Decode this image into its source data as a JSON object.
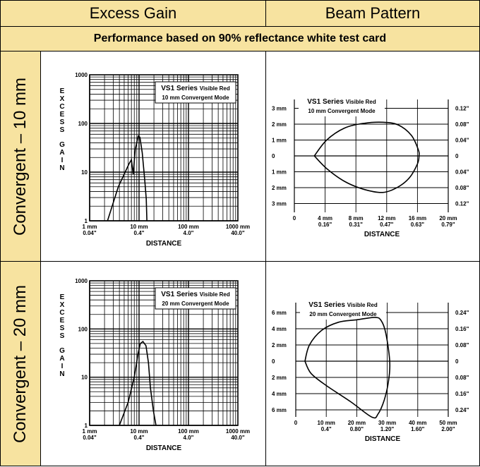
{
  "headers": {
    "excess_gain": "Excess Gain",
    "beam_pattern": "Beam Pattern",
    "performance_note": "Performance based on 90% reflectance white test card"
  },
  "rows": [
    {
      "label": "Convergent – 10 mm"
    },
    {
      "label": "Convergent – 20 mm"
    }
  ],
  "colors": {
    "header_bg": "#f7e3a0",
    "line": "#000000",
    "background": "#ffffff"
  },
  "chart_data": [
    {
      "type": "line",
      "chart": "excess_gain",
      "title": "VS1 Series",
      "title_suffix": "Visible Red",
      "subtitle": "10 mm Convergent Mode",
      "ylabel": "EXCESS GAIN",
      "xlabel": "DISTANCE",
      "y_scale": "log",
      "x_scale": "log",
      "ylim": [
        1,
        1000
      ],
      "xlim": [
        1,
        1000
      ],
      "y_ticks": [
        "1",
        "10",
        "100",
        "1000"
      ],
      "x_ticks": [
        [
          "1 mm",
          "0.04\""
        ],
        [
          "10 mm",
          "0.4\""
        ],
        [
          "100 mm",
          "4.0\""
        ],
        [
          "1000 mm",
          "40.0\""
        ]
      ],
      "series": [
        {
          "points": [
            [
              2.3,
              1
            ],
            [
              3.8,
              5
            ],
            [
              6.3,
              15
            ],
            [
              7.0,
              18
            ],
            [
              7.6,
              9
            ],
            [
              8.4,
              30
            ],
            [
              9.6,
              55
            ],
            [
              10.4,
              52
            ],
            [
              11.6,
              25
            ],
            [
              13.0,
              7
            ],
            [
              14.0,
              2.8
            ],
            [
              14.4,
              1
            ]
          ]
        }
      ]
    },
    {
      "type": "line",
      "chart": "beam_pattern",
      "title": "VS1 Series",
      "title_suffix": "Visible Red",
      "subtitle": "10 mm Convergent Mode",
      "xlabel": "DISTANCE",
      "xlim": [
        0,
        20
      ],
      "ylim": [
        -3.5,
        3.5
      ],
      "x_ticks": [
        [
          "0",
          ""
        ],
        [
          "4 mm",
          "0.16\""
        ],
        [
          "8 mm",
          "0.31\""
        ],
        [
          "12 mm",
          "0.47\""
        ],
        [
          "16 mm",
          "0.63\""
        ],
        [
          "20 mm",
          "0.79\""
        ]
      ],
      "y_ticks_left": [
        [
          "3 mm",
          3
        ],
        [
          "2 mm",
          2
        ],
        [
          "1 mm",
          1
        ],
        [
          "0",
          0
        ],
        [
          "1 mm",
          -1
        ],
        [
          "2 mm",
          -2
        ],
        [
          "3 mm",
          -3
        ]
      ],
      "y_ticks_right": [
        [
          "0.12\"",
          3
        ],
        [
          "0.08\"",
          2
        ],
        [
          "0.04\"",
          1
        ],
        [
          "0",
          0
        ],
        [
          "0.04\"",
          -1
        ],
        [
          "0.08\"",
          -2
        ],
        [
          "0.12\"",
          -3
        ]
      ],
      "series": [
        {
          "points": [
            [
              2.6,
              0
            ],
            [
              4.2,
              1.0
            ],
            [
              6.5,
              1.75
            ],
            [
              9.0,
              2.05
            ],
            [
              11.5,
              2.12
            ],
            [
              13.5,
              1.95
            ],
            [
              15.2,
              1.3
            ],
            [
              16.1,
              0.4
            ],
            [
              16.2,
              0
            ],
            [
              16.0,
              -0.5
            ],
            [
              15.0,
              -1.35
            ],
            [
              13.5,
              -1.95
            ],
            [
              11.5,
              -2.3
            ],
            [
              9.0,
              -2.1
            ],
            [
              6.5,
              -1.6
            ],
            [
              4.2,
              -0.8
            ],
            [
              2.6,
              0
            ]
          ]
        }
      ]
    },
    {
      "type": "line",
      "chart": "excess_gain",
      "title": "VS1 Series",
      "title_suffix": "Visible Red",
      "subtitle": "20 mm Convergent Mode",
      "ylabel": "EXCESS GAIN",
      "xlabel": "DISTANCE",
      "y_scale": "log",
      "x_scale": "log",
      "ylim": [
        1,
        1000
      ],
      "xlim": [
        1,
        1000
      ],
      "y_ticks": [
        "1",
        "10",
        "100",
        "1000"
      ],
      "x_ticks": [
        [
          "1 mm",
          "0.04\""
        ],
        [
          "10 mm",
          "0.4\""
        ],
        [
          "100 mm",
          "4.0\""
        ],
        [
          "1000 mm",
          "40.0\""
        ]
      ],
      "series": [
        {
          "points": [
            [
              4.0,
              1
            ],
            [
              6.0,
              3
            ],
            [
              8.0,
              10
            ],
            [
              9.5,
              30
            ],
            [
              10.6,
              50
            ],
            [
              12.0,
              55
            ],
            [
              13.8,
              45
            ],
            [
              15.5,
              20
            ],
            [
              17.0,
              6
            ],
            [
              19.5,
              2
            ],
            [
              22.0,
              1
            ]
          ]
        }
      ]
    },
    {
      "type": "line",
      "chart": "beam_pattern",
      "title": "VS1 Series",
      "title_suffix": "Visible Red",
      "subtitle": "20 mm Convergent Mode",
      "xlabel": "DISTANCE",
      "xlim": [
        0,
        50
      ],
      "ylim": [
        -7,
        7
      ],
      "x_ticks": [
        [
          "0",
          ""
        ],
        [
          "10 mm",
          "0.4\""
        ],
        [
          "20 mm",
          "0.80\""
        ],
        [
          "30 mm",
          "1.20\""
        ],
        [
          "40 mm",
          "1.60\""
        ],
        [
          "50 mm",
          "2.00\""
        ]
      ],
      "y_ticks_left": [
        [
          "6 mm",
          6
        ],
        [
          "4 mm",
          4
        ],
        [
          "2 mm",
          2
        ],
        [
          "0",
          0
        ],
        [
          "2 mm",
          -2
        ],
        [
          "4 mm",
          -4
        ],
        [
          "6 mm",
          -6
        ]
      ],
      "y_ticks_right": [
        [
          "0.24\"",
          6
        ],
        [
          "0.16\"",
          4
        ],
        [
          "0.08\"",
          2
        ],
        [
          "0",
          0
        ],
        [
          "0.08\"",
          -2
        ],
        [
          "0.16\"",
          -4
        ],
        [
          "0.24\"",
          -6
        ]
      ],
      "series": [
        {
          "points": [
            [
              3.0,
              0
            ],
            [
              4.5,
              2.0
            ],
            [
              8.5,
              3.8
            ],
            [
              14.0,
              4.8
            ],
            [
              20.0,
              5.1
            ],
            [
              26.0,
              5.4
            ],
            [
              28.0,
              5.0
            ],
            [
              29.5,
              3.5
            ],
            [
              30.8,
              0
            ],
            [
              30.4,
              -2.5
            ],
            [
              29.0,
              -4.8
            ],
            [
              27.0,
              -6.5
            ],
            [
              25.0,
              -6.9
            ],
            [
              18.0,
              -5.0
            ],
            [
              10.0,
              -3.0
            ],
            [
              5.0,
              -1.5
            ],
            [
              3.0,
              0
            ]
          ]
        }
      ]
    }
  ]
}
